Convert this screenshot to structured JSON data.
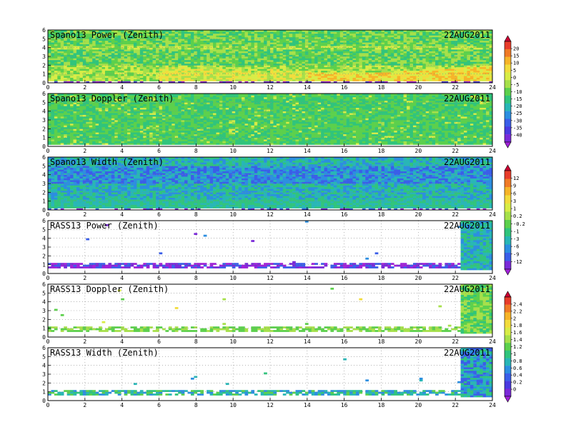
{
  "chart_data": [
    {
      "type": "heatmap",
      "title": "Spano13 Power (Zenith)",
      "date_label": "22AUG2011",
      "xlim": [
        0,
        24
      ],
      "ylim": [
        0,
        6
      ],
      "x_ticks": [
        "0",
        "2",
        "4",
        "6",
        "8",
        "10",
        "12",
        "14",
        "16",
        "18",
        "20",
        "22",
        "24"
      ],
      "y_ticks": [
        "0",
        "1",
        "2",
        "3",
        "4",
        "5",
        "6"
      ],
      "grid": true,
      "colorbar_group": "A",
      "description_bands": [
        {
          "height_range": [
            0.3,
            1.5
          ],
          "level": "high"
        },
        {
          "height_range": [
            1.5,
            3.0
          ],
          "level": "medium"
        },
        {
          "height_range": [
            3.0,
            6.0
          ],
          "level": "medium"
        }
      ]
    },
    {
      "type": "heatmap",
      "title": "Spano13 Doppler (Zenith)",
      "date_label": "22AUG2011",
      "xlim": [
        0,
        24
      ],
      "ylim": [
        0,
        6
      ],
      "x_ticks": [
        "0",
        "2",
        "4",
        "6",
        "8",
        "10",
        "12",
        "14",
        "16",
        "18",
        "20",
        "22",
        "24"
      ],
      "y_ticks": [
        "0",
        "1",
        "2",
        "3",
        "4",
        "5",
        "6"
      ],
      "grid": true,
      "colorbar_group": "A"
    },
    {
      "type": "heatmap",
      "title": "Spano13 Width (Zenith)",
      "date_label": "22AUG2011",
      "xlim": [
        0,
        24
      ],
      "ylim": [
        0,
        6
      ],
      "x_ticks": [
        "0",
        "2",
        "4",
        "6",
        "8",
        "10",
        "12",
        "14",
        "16",
        "18",
        "20",
        "22",
        "24"
      ],
      "y_ticks": [
        "0",
        "1",
        "2",
        "3",
        "4",
        "5",
        "6"
      ],
      "grid": true,
      "colorbar_group": "B"
    },
    {
      "type": "heatmap",
      "title": "RASS13 Power (Zenith)",
      "date_label": "22AUG2011",
      "xlim": [
        0,
        24
      ],
      "ylim": [
        0,
        6
      ],
      "x_ticks": [
        "0",
        "2",
        "4",
        "6",
        "8",
        "10",
        "12",
        "14",
        "16",
        "18",
        "20",
        "22",
        "24"
      ],
      "y_ticks": [
        "0",
        "1",
        "2",
        "3",
        "4",
        "5",
        "6"
      ],
      "grid": true,
      "colorbar_group": "B"
    },
    {
      "type": "heatmap",
      "title": "RASS13 Doppler (Zenith)",
      "date_label": "22AUG2011",
      "xlim": [
        0,
        24
      ],
      "ylim": [
        0,
        6
      ],
      "x_ticks": [
        "0",
        "2",
        "4",
        "6",
        "8",
        "10",
        "12",
        "14",
        "16",
        "18",
        "20",
        "22",
        "24"
      ],
      "y_ticks": [
        "0",
        "1",
        "2",
        "3",
        "4",
        "5",
        "6"
      ],
      "grid": true,
      "colorbar_group": "C"
    },
    {
      "type": "heatmap",
      "title": "RASS13 Width (Zenith)",
      "date_label": "22AUG2011",
      "xlim": [
        0,
        24
      ],
      "ylim": [
        0,
        6
      ],
      "x_ticks": [
        "0",
        "2",
        "4",
        "6",
        "8",
        "10",
        "12",
        "14",
        "16",
        "18",
        "20",
        "22",
        "24"
      ],
      "y_ticks": [
        "0",
        "1",
        "2",
        "3",
        "4",
        "5",
        "6"
      ],
      "grid": true,
      "colorbar_group": "C"
    }
  ],
  "colorbars": [
    {
      "id": "A",
      "labels": [
        "20",
        "15",
        "10",
        "5",
        "0",
        "-5",
        "-10",
        "-15",
        "-20",
        "-25",
        "-30",
        "-35",
        "-40"
      ],
      "colors": [
        "#cc0033",
        "#e83c2a",
        "#f07a26",
        "#f6b428",
        "#f2dc3c",
        "#d8ec46",
        "#a6e04a",
        "#5cd04c",
        "#30c47c",
        "#28b6b6",
        "#2c8ee0",
        "#3a5ee8",
        "#4a3ae0",
        "#7a2ad8",
        "#a020d8"
      ]
    },
    {
      "id": "B",
      "labels": [
        "12",
        "9",
        "6",
        "3",
        "1",
        "0.2",
        "-0.2",
        "-1",
        "-3",
        "-6",
        "-9",
        "-12"
      ],
      "colors": [
        "#cc0033",
        "#e83c2a",
        "#f07a26",
        "#f6b428",
        "#f2dc3c",
        "#d8ec46",
        "#a6e04a",
        "#5cd04c",
        "#30c47c",
        "#28b6b6",
        "#2c8ee0",
        "#3a5ee8",
        "#7a2ad8",
        "#a020d8"
      ]
    },
    {
      "id": "C",
      "labels": [
        "2.4",
        "2.2",
        "2",
        "1.8",
        "1.6",
        "1.4",
        "1.2",
        "1",
        "0.8",
        "0.6",
        "0.4",
        "0.2",
        "0"
      ],
      "colors": [
        "#cc0033",
        "#e83c2a",
        "#f07a26",
        "#f6b428",
        "#f2dc3c",
        "#d8ec46",
        "#a6e04a",
        "#5cd04c",
        "#30c47c",
        "#28b6b6",
        "#2c8ee0",
        "#3a5ee8",
        "#4a3ae0",
        "#7a2ad8",
        "#a020d8"
      ]
    }
  ]
}
